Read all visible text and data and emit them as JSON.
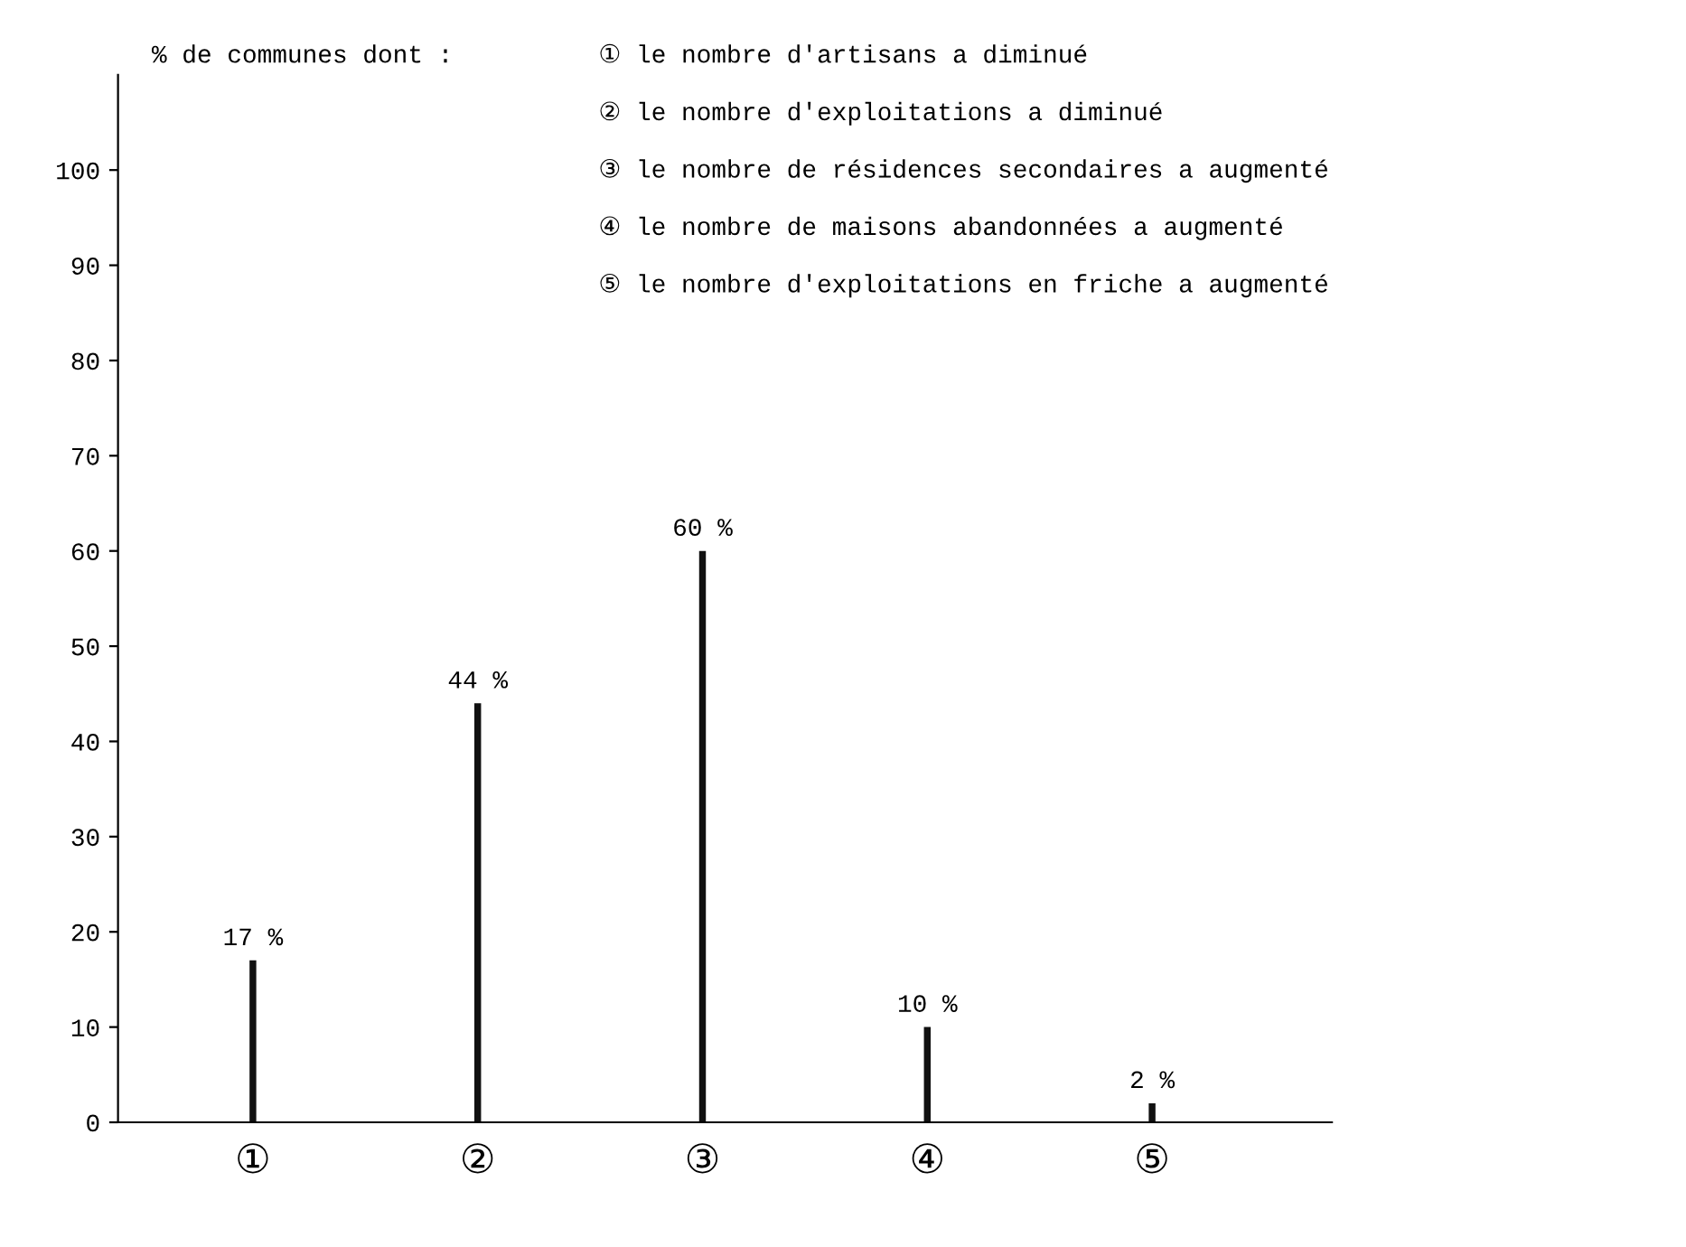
{
  "chart_data": {
    "type": "bar",
    "title": "% de communes dont :",
    "categories": [
      "①",
      "②",
      "③",
      "④",
      "⑤"
    ],
    "values": [
      17,
      44,
      60,
      10,
      2
    ],
    "value_labels": [
      "17 %",
      "44 %",
      "60 %",
      "10 %",
      "2 %"
    ],
    "color": "#111111",
    "ylim": [
      0,
      110
    ],
    "yticks": [
      0,
      10,
      20,
      30,
      40,
      50,
      60,
      70,
      80,
      90,
      100
    ],
    "annotations": [
      "① le nombre d'artisans a diminué",
      "② le nombre d'exploitations a diminué",
      "③ le nombre de résidences secondaires a augmenté",
      "④ le nombre de maisons abandonnées a augmenté",
      "⑤ le nombre d'exploitations en friche a augmenté"
    ],
    "grid": false,
    "legend": false
  }
}
